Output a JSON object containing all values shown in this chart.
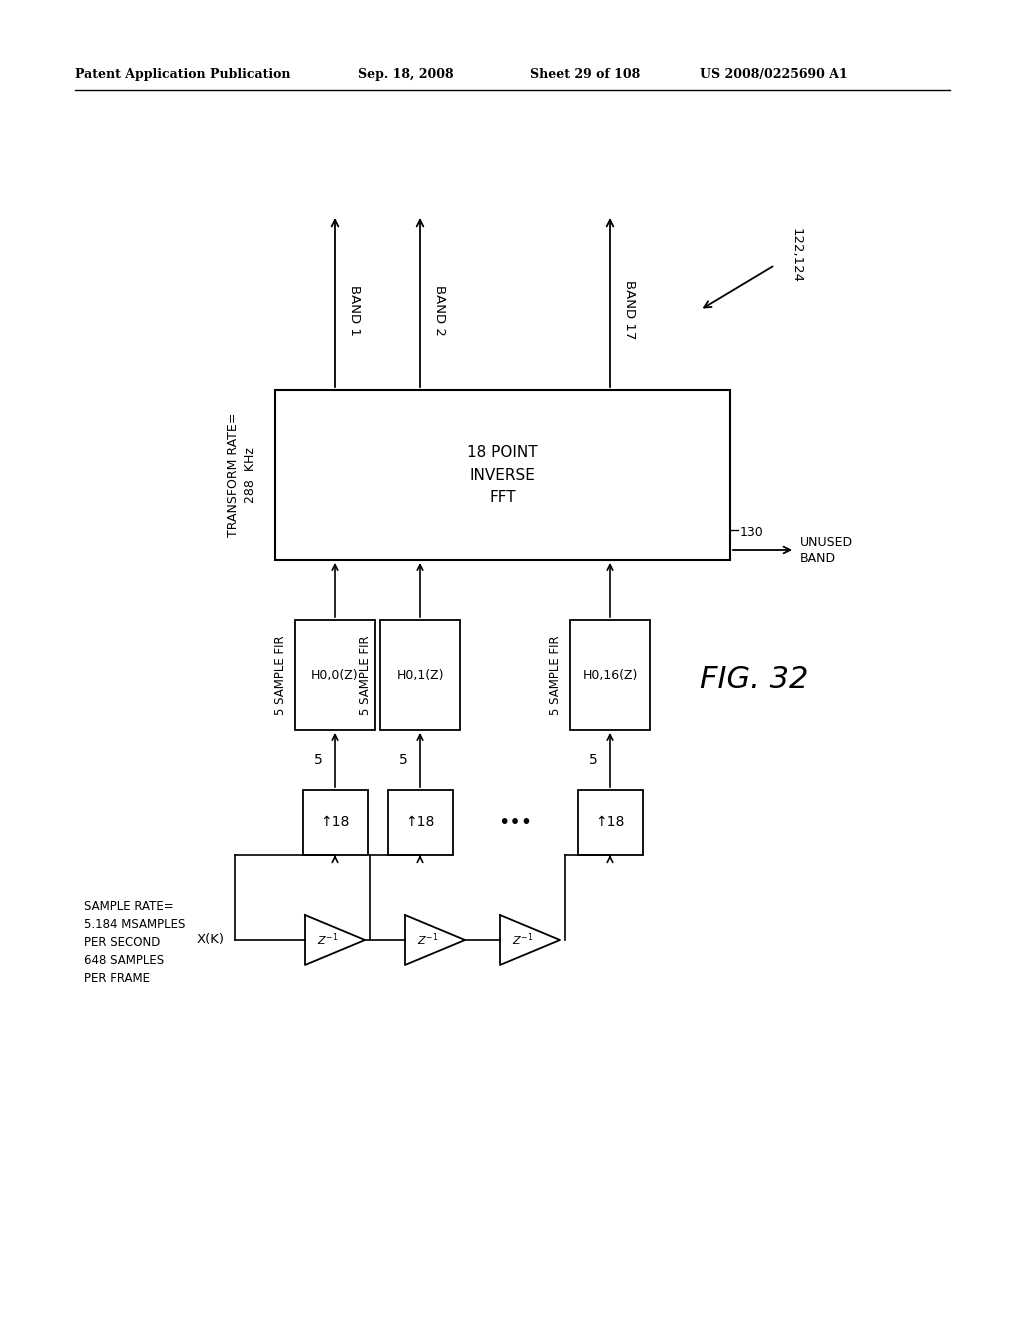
{
  "bg_color": "#ffffff",
  "header_text": "Patent Application Publication",
  "header_date": "Sep. 18, 2008",
  "header_sheet": "Sheet 29 of 108",
  "header_patent": "US 2008/0225690 A1",
  "fig_label": "FIG. 32",
  "ref_130": "130",
  "ref_122124": "122,124",
  "transform_rate_label": "TRANSFORM RATE=\n288  KHz",
  "sample_rate_label": "SAMPLE RATE=\n5.184 MSAMPLES\nPER SECOND\n648 SAMPLES\nPER FRAME",
  "input_label": "X(K)",
  "ifft_label": "18 POINT\nINVERSE\nFFT",
  "band_labels": [
    "BAND 1",
    "BAND 2",
    "BAND 17"
  ],
  "fir_labels": [
    "H0,0(Z)",
    "H0,1(Z)",
    "H0,16(Z)"
  ],
  "fir_prefix": "5 SAMPLE FIR",
  "unused_label": "UNUSED\nBAND",
  "num_label": "5"
}
